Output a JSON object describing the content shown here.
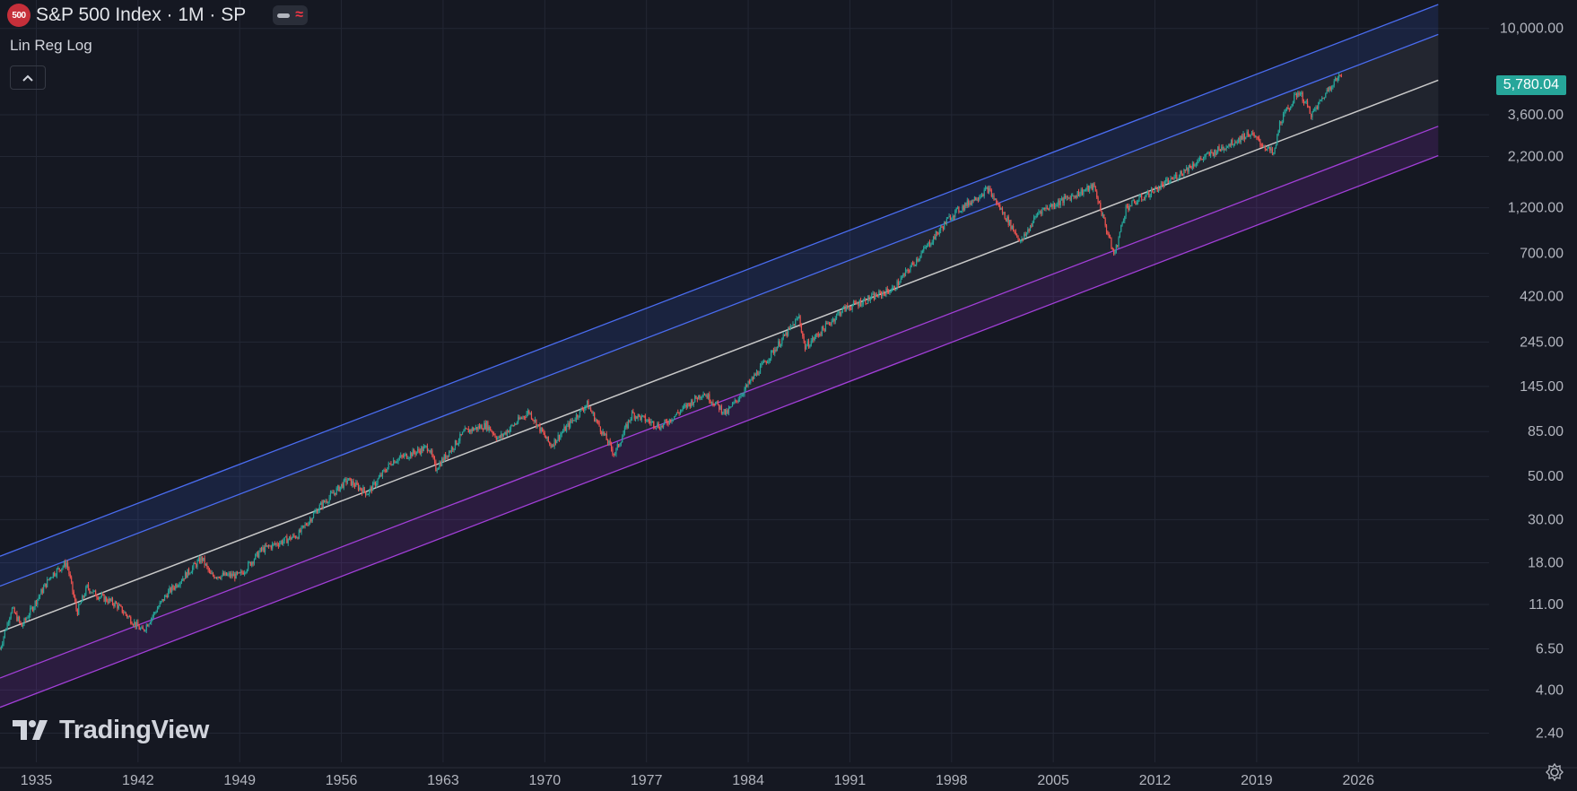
{
  "header": {
    "symbol_badge": "500",
    "title": "S&P 500 Index · 1M · SP",
    "indicator": "Lin Reg Log",
    "collapse_icon": "chevron-up-icon"
  },
  "branding": {
    "logo_text": "TradingView",
    "logo_icon": "tradingview-logo-icon"
  },
  "price_label": "5,780.04",
  "colors": {
    "background": "#151822",
    "up": "#26a69a",
    "down": "#ef5350",
    "upper_band": "#3b5bd9",
    "lower_band": "#8e34c9",
    "midline": "#c9c9c9",
    "price_badge": "#26a69a"
  },
  "chart_data": {
    "type": "candlestick",
    "scale": "log",
    "timeframe": "1M",
    "xlim": [
      1932.5,
      2035.0
    ],
    "ylim": [
      1.7,
      14000
    ],
    "x_ticks": [
      "1935",
      "1942",
      "1949",
      "1956",
      "1963",
      "1970",
      "1977",
      "1984",
      "1991",
      "1998",
      "2005",
      "2012",
      "2019",
      "2026"
    ],
    "y_ticks": [
      "10,000.00",
      "5,780.04",
      "3,600.00",
      "2,200.00",
      "1,200.00",
      "700.00",
      "420.00",
      "245.00",
      "145.00",
      "85.00",
      "50.00",
      "30.00",
      "18.00",
      "11.00",
      "6.50",
      "4.00",
      "2.40"
    ],
    "last_price": 5780.04,
    "regression_channel": {
      "start_year": 1932.5,
      "end_year": 2031.5,
      "midline_start": 7.94,
      "midline_end": 5420,
      "inner_upper_multiplier": 1.72,
      "outer_upper_multiplier": 2.45,
      "inner_lower_multiplier": 0.58,
      "outer_lower_multiplier": 0.41
    },
    "series": [
      {
        "name": "S&P 500",
        "x": [
          1932.5,
          1933.3,
          1934.0,
          1935.0,
          1936.0,
          1937.1,
          1937.8,
          1938.5,
          1939.0,
          1940.5,
          1942.3,
          1944.0,
          1946.4,
          1947.0,
          1949.0,
          1950.5,
          1953.0,
          1954.5,
          1956.4,
          1957.8,
          1959.5,
          1962.0,
          1962.5,
          1964.5,
          1966.0,
          1966.8,
          1968.9,
          1970.4,
          1972.9,
          1974.8,
          1976.0,
          1978.0,
          1980.9,
          1982.5,
          1987.5,
          1987.9,
          1990.5,
          1994.0,
          1998.0,
          2000.5,
          2002.8,
          2004.0,
          2007.8,
          2009.2,
          2010.0,
          2013.0,
          2015.0,
          2018.5,
          2020.2,
          2020.6,
          2021.9,
          2022.8,
          2024.2,
          2024.9
        ],
        "values": [
          6.5,
          10.5,
          8.5,
          11.5,
          15.5,
          18.0,
          10.0,
          13.5,
          12.5,
          11.0,
          8.0,
          12.5,
          19.0,
          15.5,
          15.5,
          21.0,
          25.0,
          35.0,
          48.0,
          41.0,
          60.0,
          71.0,
          55.0,
          85.0,
          92.0,
          78.0,
          108.0,
          72.0,
          118.0,
          65.0,
          105.0,
          90.0,
          135.0,
          105.0,
          330.0,
          230.0,
          360.0,
          460.0,
          1100.0,
          1500.0,
          800.0,
          1150.0,
          1550.0,
          680.0,
          1200.0,
          1650.0,
          2100.0,
          2900.0,
          2250.0,
          3300.0,
          4770.0,
          3600.0,
          5250.0,
          5780.0
        ]
      }
    ]
  }
}
